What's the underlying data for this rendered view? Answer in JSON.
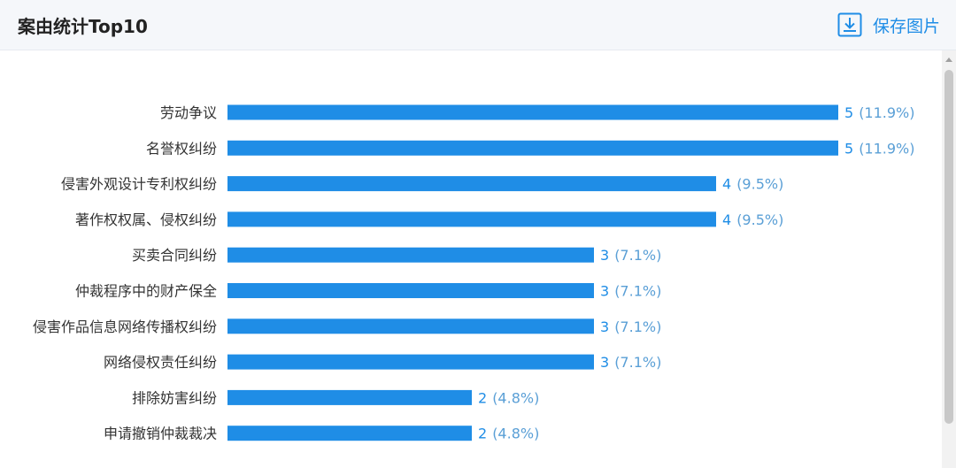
{
  "header": {
    "title": "案由统计Top10",
    "save_label": "保存图片",
    "save_icon": "download-icon"
  },
  "colors": {
    "bar": "#1f8de6",
    "value_text": "#1f8de6"
  },
  "chart_data": {
    "type": "bar",
    "orientation": "horizontal",
    "title": "案由统计Top10",
    "categories": [
      "劳动争议",
      "名誉权纠纷",
      "侵害外观设计专利权纠纷",
      "著作权权属、侵权纠纷",
      "买卖合同纠纷",
      "仲裁程序中的财产保全",
      "侵害作品信息网络传播权纠纷",
      "网络侵权责任纠纷",
      "排除妨害纠纷",
      "申请撤销仲裁裁决"
    ],
    "values": [
      5,
      5,
      4,
      4,
      3,
      3,
      3,
      3,
      2,
      2
    ],
    "percent_labels": [
      "(11.9%)",
      "(11.9%)",
      "(9.5%)",
      "(9.5%)",
      "(7.1%)",
      "(7.1%)",
      "(7.1%)",
      "(7.1%)",
      "(4.8%)",
      "(4.8%)"
    ],
    "xlim": [
      0,
      5
    ],
    "grid": false,
    "legend": "none"
  }
}
